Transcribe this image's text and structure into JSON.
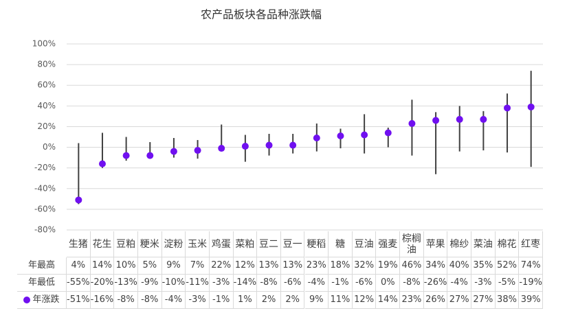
{
  "chart_data": {
    "type": "range",
    "title": "农产品板块各品种涨跌幅",
    "categories": [
      "生猪",
      "花生",
      "豆粕",
      "粳米",
      "淀粉",
      "玉米",
      "鸡蛋",
      "菜粕",
      "豆二",
      "豆一",
      "粳稻",
      "糖",
      "豆油",
      "强麦",
      "棕榈油",
      "苹果",
      "棉纱",
      "菜油",
      "棉花",
      "红枣"
    ],
    "series": [
      {
        "name": "年最高",
        "color": "#404040",
        "values": [
          4,
          14,
          10,
          5,
          9,
          7,
          22,
          12,
          13,
          13,
          23,
          18,
          32,
          19,
          46,
          34,
          40,
          35,
          52,
          74
        ],
        "value_labels": [
          "4%",
          "14%",
          "10%",
          "5%",
          "9%",
          "7%",
          "22%",
          "12%",
          "13%",
          "13%",
          "23%",
          "18%",
          "32%",
          "19%",
          "46%",
          "34%",
          "40%",
          "35%",
          "52%",
          "74%"
        ]
      },
      {
        "name": "年最低",
        "color": "#404040",
        "values": [
          -55,
          -20,
          -13,
          -9,
          -10,
          -11,
          -3,
          -14,
          -8,
          -6,
          -4,
          -1,
          -6,
          0,
          -8,
          -26,
          -4,
          -3,
          -5,
          -19
        ],
        "value_labels": [
          "-55%",
          "-20%",
          "-13%",
          "-9%",
          "-10%",
          "-11%",
          "-3%",
          "-14%",
          "-8%",
          "-6%",
          "-4%",
          "-1%",
          "-6%",
          "0%",
          "-8%",
          "-26%",
          "-4%",
          "-3%",
          "-5%",
          "-19%"
        ]
      },
      {
        "name": "年涨跌",
        "color": "#7010f0",
        "values": [
          -51,
          -16,
          -8,
          -8,
          -4,
          -3,
          -1,
          1,
          2,
          2,
          9,
          11,
          12,
          14,
          23,
          26,
          27,
          27,
          38,
          39
        ],
        "value_labels": [
          "-51%",
          "-16%",
          "-8%",
          "-8%",
          "-4%",
          "-3%",
          "-1%",
          "1%",
          "2%",
          "2%",
          "9%",
          "11%",
          "12%",
          "14%",
          "23%",
          "26%",
          "27%",
          "27%",
          "38%",
          "39%"
        ]
      }
    ],
    "ylim": [
      -80,
      100
    ],
    "yticks": [
      {
        "value": -80,
        "label": "-80%"
      },
      {
        "value": -60,
        "label": "-60%"
      },
      {
        "value": -40,
        "label": "-40%"
      },
      {
        "value": -20,
        "label": "-20%"
      },
      {
        "value": 0,
        "label": "0%"
      },
      {
        "value": 20,
        "label": "20%"
      },
      {
        "value": 40,
        "label": "40%"
      },
      {
        "value": 60,
        "label": "60%"
      },
      {
        "value": 80,
        "label": "80%"
      },
      {
        "value": 100,
        "label": "100%"
      }
    ],
    "grid": true
  }
}
